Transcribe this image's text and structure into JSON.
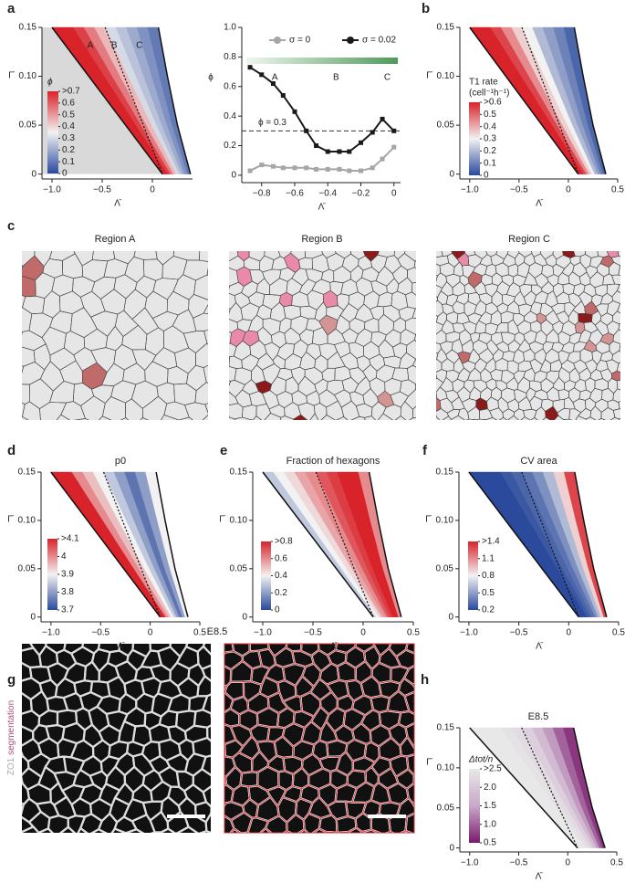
{
  "panel_labels": [
    "a",
    "b",
    "c",
    "d",
    "e",
    "f",
    "g",
    "h"
  ],
  "panel_c": {
    "titles": [
      "Region A",
      "Region B",
      "Region C"
    ]
  },
  "panel_g": {
    "title": "E8.5",
    "stain": "ZO1",
    "overlay": "segmentation"
  },
  "chart_data": [
    {
      "type": "phase",
      "xlabel": "Λ̄",
      "ylabel": "Γ̄",
      "xlim": [
        -1.1,
        0.4
      ],
      "ylim": [
        -0.005,
        0.15
      ],
      "xticks": [
        {
          "value": -1,
          "label": "−1.0"
        },
        {
          "value": -0.5,
          "label": "−0.5"
        },
        0
      ],
      "yticks": [
        0,
        {
          "value": 0.05,
          "label": "0.05"
        },
        {
          "value": 0.1,
          "label": "0.10"
        },
        {
          "value": 0.15,
          "label": "0.15"
        }
      ],
      "band_values": [
        0.75,
        0.7,
        0.65,
        0.55,
        0.45,
        0.3,
        0.25,
        0.2,
        0.15,
        0.1
      ],
      "clim": [
        0,
        0.7
      ],
      "colormap": [
        "#2b4a9c",
        "#f2f2f2",
        "#d8232a"
      ],
      "outside_color": "#d9d9d9",
      "left_boundary": {
        "x": [
          -1.0,
          0.1
        ],
        "y": [
          0.15,
          0
        ]
      },
      "right_boundary": {
        "x": [
          0.06,
          0.15,
          0.25,
          0.38
        ],
        "y": [
          0.15,
          0.1,
          0.05,
          0
        ]
      },
      "dotted_line": {
        "x": [
          -0.47,
          0.1
        ],
        "y": [
          0.15,
          0
        ]
      },
      "region_labels": [
        {
          "label": "A",
          "x": -0.62
        },
        {
          "label": "B",
          "x": -0.38
        },
        {
          "label": "C",
          "x": -0.13
        }
      ],
      "colorbar_title": "ϕ",
      "colorbar_ticks": [
        {
          "value": 0.7,
          "label": ">0.7"
        },
        0.6,
        0.5,
        0.4,
        0.3,
        0.2,
        0.1,
        0
      ]
    },
    {
      "type": "line",
      "xlabel": "Λ̄",
      "ylabel": "ϕ",
      "xlim": [
        -0.92,
        0.04
      ],
      "ylim": [
        -0.05,
        1.0
      ],
      "xticks": [
        {
          "value": -0.8,
          "label": "−0.8"
        },
        {
          "value": -0.6,
          "label": "−0.6"
        },
        {
          "value": -0.4,
          "label": "−0.4"
        },
        {
          "value": -0.2,
          "label": "−0.2"
        },
        0
      ],
      "yticks": [
        0,
        0.2,
        0.4,
        0.6,
        0.8,
        {
          "value": 1,
          "label": "1.0"
        }
      ],
      "x": [
        -0.87,
        -0.8,
        -0.73,
        -0.67,
        -0.6,
        -0.53,
        -0.47,
        -0.4,
        -0.33,
        -0.27,
        -0.2,
        -0.13,
        -0.07,
        0
      ],
      "series": [
        {
          "name": "σ = 0",
          "color": "#a6a6a6",
          "values": [
            0.03,
            0.07,
            0.06,
            0.05,
            0.05,
            0.05,
            0.04,
            0.04,
            0.04,
            0.03,
            0.03,
            0.05,
            0.11,
            0.19
          ]
        },
        {
          "name": "σ = 0.02",
          "color": "#1a1a1a",
          "values": [
            0.73,
            0.68,
            0.62,
            0.54,
            0.43,
            0.3,
            0.2,
            0.16,
            0.16,
            0.16,
            0.22,
            0.29,
            0.38,
            0.3
          ]
        }
      ],
      "hline": 0.3,
      "hline_label": "ϕ = 0.3",
      "region_labels": [
        {
          "label": "A",
          "x": -0.72
        },
        {
          "label": "B",
          "x": -0.35
        },
        {
          "label": "C",
          "x": -0.04
        }
      ]
    },
    {
      "type": "phase",
      "xlabel": "Λ̄",
      "ylabel": "Γ̄",
      "xlim": [
        -1.1,
        0.5
      ],
      "ylim": [
        -0.005,
        0.15
      ],
      "xticks": [
        {
          "value": -1,
          "label": "−1.0"
        },
        {
          "value": -0.5,
          "label": "−0.5"
        },
        0,
        0.5
      ],
      "yticks": [
        0,
        {
          "value": 0.05,
          "label": "0.05"
        },
        {
          "value": 0.1,
          "label": "0.10"
        },
        {
          "value": 0.15,
          "label": "0.15"
        }
      ],
      "band_values": [
        0.65,
        0.6,
        0.55,
        0.45,
        0.35,
        0.3,
        0.2,
        0.15,
        0.1,
        0.05
      ],
      "clim": [
        0,
        0.6
      ],
      "colormap": [
        "#2b4a9c",
        "#f2f2f2",
        "#d8232a"
      ],
      "left_boundary": {
        "x": [
          -1.0,
          0.1
        ],
        "y": [
          0.15,
          0
        ]
      },
      "right_boundary": {
        "x": [
          0.06,
          0.15,
          0.25,
          0.38
        ],
        "y": [
          0.15,
          0.1,
          0.05,
          0
        ]
      },
      "dotted_line": {
        "x": [
          -0.47,
          0.1
        ],
        "y": [
          0.15,
          0
        ]
      },
      "colorbar_title": "T1 rate",
      "colorbar_units": "(cell⁻¹h⁻¹)",
      "colorbar_ticks": [
        {
          "value": 0.6,
          "label": ">0.6"
        },
        0.5,
        0.4,
        0.3,
        0.2,
        0.1,
        0
      ]
    },
    {
      "type": "phase",
      "title": "p0",
      "xlabel": "Λ̄",
      "ylabel": "Γ̄",
      "xlim": [
        -1.1,
        0.5
      ],
      "ylim": [
        -0.005,
        0.15
      ],
      "xticks": [
        {
          "value": -1,
          "label": "−1.0"
        },
        {
          "value": -0.5,
          "label": "−0.5"
        },
        0,
        0.5
      ],
      "yticks": [
        0,
        {
          "value": 0.05,
          "label": "0.05"
        },
        {
          "value": 0.1,
          "label": "0.10"
        },
        {
          "value": 0.15,
          "label": "0.15"
        }
      ],
      "band_values": [
        4.15,
        4.1,
        4.0,
        3.95,
        3.9,
        3.85,
        3.8,
        3.75,
        3.8,
        3.9
      ],
      "clim": [
        3.7,
        4.1
      ],
      "colormap": [
        "#2b4a9c",
        "#f2f2f2",
        "#d8232a"
      ],
      "left_boundary": {
        "x": [
          -1.0,
          0.1
        ],
        "y": [
          0.15,
          0
        ]
      },
      "right_boundary": {
        "x": [
          0.06,
          0.15,
          0.25,
          0.38
        ],
        "y": [
          0.15,
          0.1,
          0.05,
          0
        ]
      },
      "dotted_line": {
        "x": [
          -0.47,
          0.1
        ],
        "y": [
          0.15,
          0
        ]
      },
      "colorbar_ticks": [
        {
          "value": 4.1,
          "label": ">4.1"
        },
        4,
        3.9,
        3.8,
        3.7
      ]
    },
    {
      "type": "phase",
      "title": "Fraction of hexagons",
      "xlabel": "Λ̄",
      "ylabel": "Γ̄",
      "xlim": [
        -1.1,
        0.5
      ],
      "ylim": [
        -0.005,
        0.15
      ],
      "xticks": [
        {
          "value": -1,
          "label": "−1.0"
        },
        {
          "value": -0.5,
          "label": "−0.5"
        },
        0,
        0.5
      ],
      "yticks": [
        0,
        {
          "value": 0.05,
          "label": "0.05"
        },
        {
          "value": 0.1,
          "label": "0.10"
        },
        {
          "value": 0.15,
          "label": "0.15"
        }
      ],
      "band_values": [
        0.3,
        0.4,
        0.45,
        0.55,
        0.6,
        0.7,
        0.75,
        0.8,
        0.85,
        0.6
      ],
      "clim": [
        0,
        0.8
      ],
      "colormap": [
        "#2b4a9c",
        "#f2f2f2",
        "#d8232a"
      ],
      "left_boundary": {
        "x": [
          -1.0,
          0.1
        ],
        "y": [
          0.15,
          0
        ]
      },
      "right_boundary": {
        "x": [
          0.06,
          0.15,
          0.25,
          0.38
        ],
        "y": [
          0.15,
          0.1,
          0.05,
          0
        ]
      },
      "dotted_line": {
        "x": [
          -0.47,
          0.1
        ],
        "y": [
          0.15,
          0
        ]
      },
      "colorbar_ticks": [
        {
          "value": 0.8,
          "label": ">0.8"
        },
        0.6,
        0.4,
        0.2,
        0
      ]
    },
    {
      "type": "phase",
      "title": "CV area",
      "xlabel": "Λ̄",
      "ylabel": "Γ̄",
      "xlim": [
        -1.1,
        0.5
      ],
      "ylim": [
        -0.005,
        0.15
      ],
      "xticks": [
        {
          "value": -1,
          "label": "−1.0"
        },
        {
          "value": -0.5,
          "label": "−0.5"
        },
        0,
        0.5
      ],
      "yticks": [
        0,
        {
          "value": 0.05,
          "label": "0.05"
        },
        {
          "value": 0.1,
          "label": "0.10"
        },
        {
          "value": 0.15,
          "label": "0.15"
        }
      ],
      "band_values": [
        0.2,
        0.2,
        0.2,
        0.25,
        0.3,
        0.35,
        0.45,
        0.6,
        0.9,
        1.3
      ],
      "clim": [
        0.2,
        1.4
      ],
      "colormap": [
        "#2b4a9c",
        "#f2f2f2",
        "#d8232a"
      ],
      "left_boundary": {
        "x": [
          -1.0,
          0.1
        ],
        "y": [
          0.15,
          0
        ]
      },
      "right_boundary": {
        "x": [
          0.06,
          0.15,
          0.25,
          0.38
        ],
        "y": [
          0.15,
          0.1,
          0.05,
          0
        ]
      },
      "dotted_line": {
        "x": [
          -0.47,
          0.1
        ],
        "y": [
          0.15,
          0
        ]
      },
      "colorbar_ticks": [
        {
          "value": 1.4,
          "label": ">1.4"
        },
        1.1,
        0.8,
        0.5,
        0.2
      ]
    },
    {
      "type": "phase",
      "title": "E8.5",
      "xlabel": "Λ̄",
      "ylabel": "Γ̄",
      "xlim": [
        -1.1,
        0.5
      ],
      "ylim": [
        -0.005,
        0.15
      ],
      "xticks": [
        {
          "value": -1,
          "label": "−1.0"
        },
        {
          "value": -0.5,
          "label": "−0.5"
        },
        0,
        0.5
      ],
      "yticks": [
        0,
        {
          "value": 0.05,
          "label": "0.05"
        },
        {
          "value": 0.1,
          "label": "0.10"
        },
        {
          "value": 0.15,
          "label": "0.15"
        }
      ],
      "band_values": [
        2.6,
        2.6,
        2.5,
        2.4,
        2.3,
        2.1,
        1.8,
        1.4,
        1.0,
        0.7
      ],
      "clim": [
        0.5,
        2.5
      ],
      "colormap": [
        "#7a1b6c",
        "#c9a8c9",
        "#e8e8e8"
      ],
      "left_boundary": {
        "x": [
          -1.0,
          0.1
        ],
        "y": [
          0.15,
          0
        ]
      },
      "right_boundary": {
        "x": [
          0.06,
          0.15,
          0.25,
          0.38
        ],
        "y": [
          0.15,
          0.1,
          0.05,
          0
        ]
      },
      "dotted_line": {
        "x": [
          -0.47,
          0.1
        ],
        "y": [
          0.15,
          0
        ]
      },
      "colorbar_title": "Δtot/n",
      "colorbar_ticks": [
        {
          "value": 2.5,
          "label": ">2.5"
        },
        {
          "value": 2,
          "label": "2.0"
        },
        1.5,
        {
          "value": 1,
          "label": "1.0"
        },
        0.5
      ]
    }
  ]
}
